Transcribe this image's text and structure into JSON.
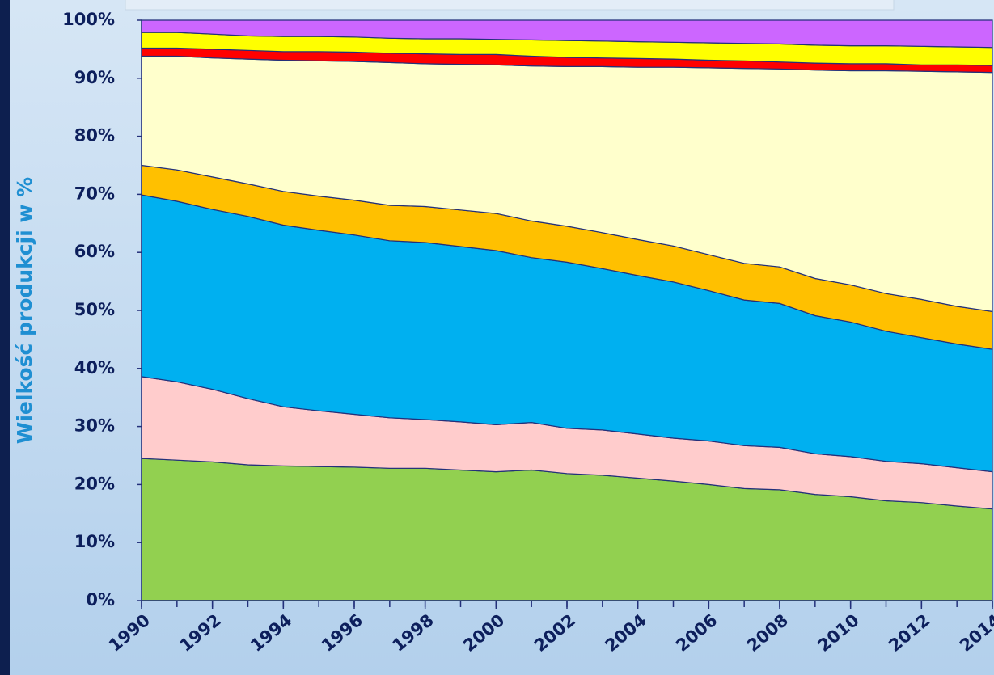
{
  "chart_data": {
    "type": "stacked-area",
    "y_label": "Wielkość produkcji w %",
    "x": [
      1990,
      1991,
      1992,
      1993,
      1994,
      1995,
      1996,
      1997,
      1998,
      1999,
      2000,
      2001,
      2002,
      2003,
      2004,
      2005,
      2006,
      2007,
      2008,
      2009,
      2010,
      2011,
      2012,
      2013,
      2014
    ],
    "xlim": [
      1990,
      2014
    ],
    "xticks": [
      1990,
      1992,
      1994,
      1996,
      1998,
      2000,
      2002,
      2004,
      2006,
      2008,
      2010,
      2012,
      2014
    ],
    "ylim": [
      0,
      100
    ],
    "yticks": [
      {
        "value": 0,
        "label": "0%"
      },
      {
        "value": 10,
        "label": "10%"
      },
      {
        "value": 20,
        "label": "20%"
      },
      {
        "value": 30,
        "label": "30%"
      },
      {
        "value": 40,
        "label": "40%"
      },
      {
        "value": 50,
        "label": "50%"
      },
      {
        "value": 60,
        "label": "60%"
      },
      {
        "value": 70,
        "label": "70%"
      },
      {
        "value": 80,
        "label": "80%"
      },
      {
        "value": 90,
        "label": "90%"
      },
      {
        "value": 100,
        "label": "100%"
      }
    ],
    "series": [
      {
        "color": "#92d050",
        "values": [
          24.5,
          24.2,
          23.9,
          23.4,
          23.2,
          23.1,
          23.0,
          22.8,
          22.8,
          22.5,
          22.2,
          22.5,
          21.9,
          21.6,
          21.1,
          20.6,
          20.0,
          19.3,
          19.1,
          18.3,
          17.9,
          17.2,
          16.9,
          16.3,
          15.8
        ]
      },
      {
        "color": "#ffcccc",
        "values": [
          14.1,
          13.5,
          12.5,
          11.4,
          10.2,
          9.6,
          9.1,
          8.7,
          8.4,
          8.3,
          8.1,
          8.2,
          7.8,
          7.8,
          7.6,
          7.4,
          7.5,
          7.4,
          7.3,
          7.0,
          6.9,
          6.8,
          6.7,
          6.6,
          6.4
        ]
      },
      {
        "color": "#00b0f0",
        "values": [
          31.3,
          31.1,
          31.0,
          31.4,
          31.3,
          31.1,
          30.9,
          30.5,
          30.5,
          30.2,
          30.0,
          28.4,
          28.6,
          27.8,
          27.3,
          26.9,
          25.9,
          25.1,
          24.8,
          23.8,
          23.2,
          22.4,
          21.7,
          21.3,
          21.1
        ]
      },
      {
        "color": "#ffc000",
        "values": [
          5.1,
          5.4,
          5.6,
          5.6,
          5.8,
          5.9,
          6.0,
          6.1,
          6.2,
          6.3,
          6.4,
          6.3,
          6.2,
          6.2,
          6.2,
          6.2,
          6.2,
          6.3,
          6.3,
          6.4,
          6.4,
          6.5,
          6.6,
          6.5,
          6.5
        ]
      },
      {
        "color": "#ffffcc",
        "values": [
          18.8,
          19.6,
          20.5,
          21.5,
          22.6,
          23.3,
          23.9,
          24.6,
          24.6,
          25.1,
          25.6,
          26.7,
          27.5,
          28.6,
          29.7,
          30.8,
          32.2,
          33.6,
          34.1,
          35.9,
          36.9,
          38.4,
          39.3,
          40.4,
          41.2
        ]
      },
      {
        "color": "#ff0000",
        "values": [
          1.4,
          1.4,
          1.5,
          1.5,
          1.5,
          1.6,
          1.6,
          1.6,
          1.7,
          1.7,
          1.8,
          1.7,
          1.6,
          1.5,
          1.5,
          1.4,
          1.3,
          1.3,
          1.2,
          1.2,
          1.2,
          1.2,
          1.1,
          1.2,
          1.2
        ]
      },
      {
        "color": "#ffff00",
        "values": [
          2.7,
          2.7,
          2.6,
          2.5,
          2.6,
          2.6,
          2.6,
          2.6,
          2.6,
          2.7,
          2.6,
          2.8,
          2.9,
          2.9,
          2.9,
          2.9,
          3.0,
          3.0,
          3.1,
          3.1,
          3.1,
          3.1,
          3.2,
          3.1,
          3.1
        ]
      },
      {
        "color": "#cc66ff",
        "values": [
          2.1,
          2.1,
          2.4,
          2.7,
          2.8,
          2.8,
          2.9,
          3.1,
          3.2,
          3.2,
          3.3,
          3.4,
          3.5,
          3.6,
          3.7,
          3.8,
          3.9,
          4.0,
          4.1,
          4.3,
          4.4,
          4.4,
          4.5,
          4.6,
          4.7
        ]
      }
    ]
  }
}
